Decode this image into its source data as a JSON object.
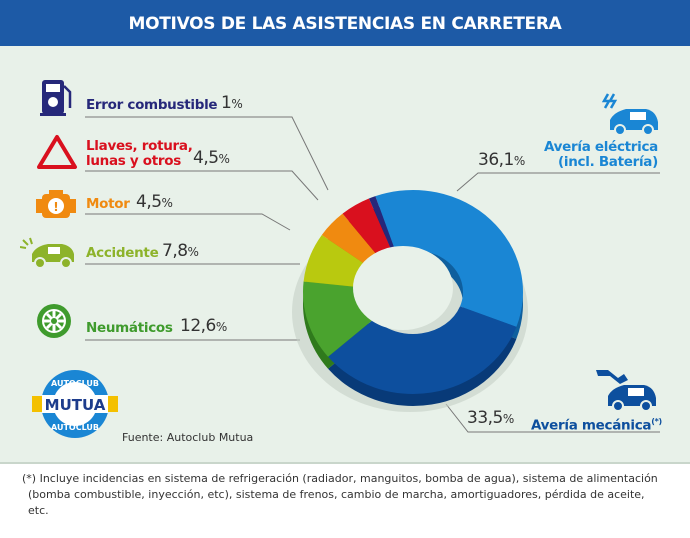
{
  "title": "MOTIVOS DE LAS ASISTENCIAS EN CARRETERA",
  "chart_data": {
    "type": "pie",
    "variant": "donut-3d",
    "title": "MOTIVOS DE LAS ASISTENCIAS EN CARRETERA",
    "unit": "%",
    "slices": [
      {
        "name": "Avería eléctrica (incl. Batería)",
        "value": 36.1,
        "label": "36,1",
        "color": "#1a86d4",
        "side": "#0f5f9e",
        "icon": "electric-car-icon"
      },
      {
        "name": "Avería mecánica",
        "footnote_mark": "(*)",
        "value": 33.5,
        "label": "33,5",
        "color": "#0d4f9e",
        "side": "#083a78",
        "icon": "wrench-car-icon"
      },
      {
        "name": "Neumáticos",
        "value": 12.6,
        "label": "12,6",
        "color": "#4aa32e",
        "side": "#2f7a1c",
        "icon": "tire-icon"
      },
      {
        "name": "Accidente",
        "value": 7.8,
        "label": "7,8",
        "color": "#b9c90f",
        "side": "#8b970a",
        "icon": "crashed-car-icon"
      },
      {
        "name": "Motor",
        "value": 4.5,
        "label": "4,5",
        "color": "#f08a10",
        "side": "#b8650a",
        "icon": "engine-icon"
      },
      {
        "name": "Llaves, rotura, lunas y otros",
        "value": 4.5,
        "label": "4,5",
        "color": "#d9101e",
        "side": "#9a0a14",
        "icon": "warning-triangle-icon"
      },
      {
        "name": "Error combustible",
        "value": 1,
        "label": "1",
        "color": "#26287a",
        "side": "#181a55",
        "icon": "fuel-pump-icon"
      }
    ]
  },
  "labels": {
    "electric_l1": "Avería eléctrica",
    "electric_l2": "(incl. Batería)",
    "mechanical": "Avería mecánica",
    "mechanical_mark": "(*)",
    "tires": "Neumáticos",
    "accident": "Accidente",
    "engine": "Motor",
    "keys_l1": "Llaves, rotura,",
    "keys_l2": "lunas y otros",
    "fuel": "Error combustible",
    "pct_sign": "%"
  },
  "colors": {
    "header": "#1d5aa6",
    "fuel": "#26287a",
    "keys": "#d9101e",
    "engine": "#f08a10",
    "accident": "#8db32a",
    "tires": "#3f9b2d",
    "electric": "#1a86d4",
    "mechanical": "#0d4f9e"
  },
  "logo": {
    "top": "AUTOCLUB",
    "middle": "MUTUA",
    "bottom": "AUTOCLUB"
  },
  "source": "Fuente: Autoclub Mutua",
  "footnote": "(*) Incluye incidencias en sistema de refrigeración (radiador, manguitos, bomba de agua), sistema de alimentación (bomba combustible, inyección, etc), sistema de frenos, cambio de marcha, amortiguadores, pérdida de aceite, etc."
}
